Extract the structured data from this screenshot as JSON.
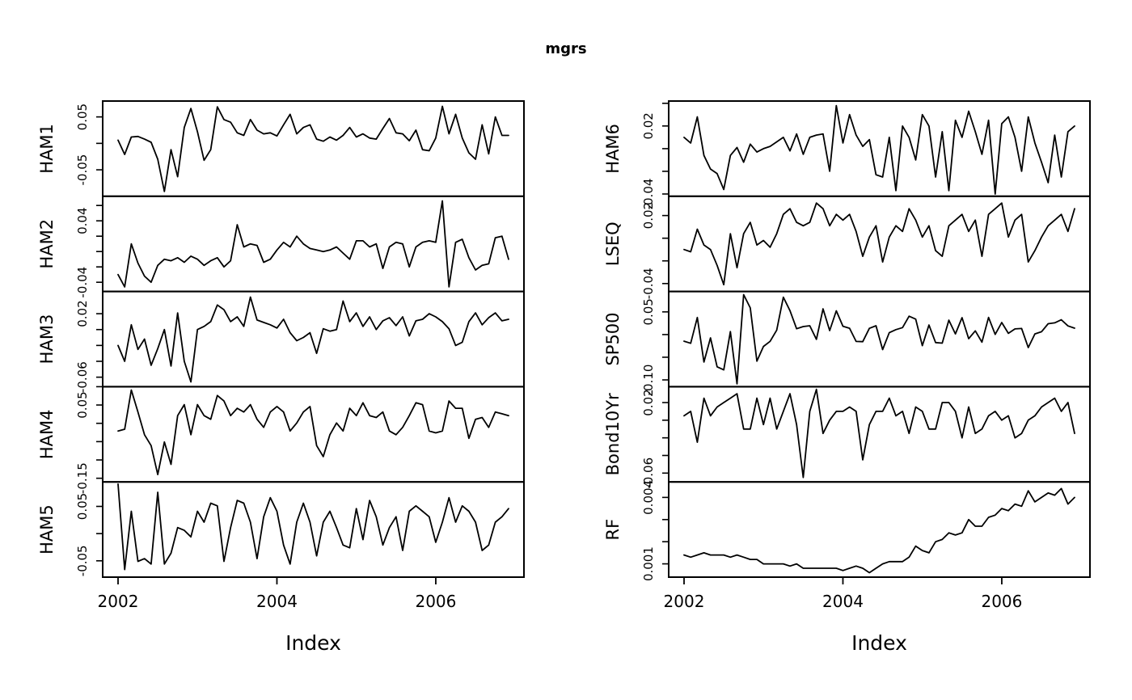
{
  "title": "mgrs",
  "colors": {
    "line": "#000000",
    "frame": "#000000",
    "background": "#ffffff",
    "text": "#000000"
  },
  "chart_data": {
    "type": "line",
    "title": "mgrs",
    "xlabel": "Index",
    "x_ticks": [
      2002,
      2004,
      2006
    ],
    "x_start": 2002.0,
    "x_frequency": "monthly",
    "n_points": 60,
    "layout": "2 columns x 5 stacked panels, shared x axis per column, y tick labels rotated 90deg",
    "panels": [
      {
        "name": "HAM1",
        "column": 0,
        "ylim": [
          -0.1,
          0.08
        ],
        "yticks": [
          0.05,
          0.0,
          -0.05
        ],
        "ytick_labels": [
          {
            "v": 0.05,
            "text": "0.05"
          },
          {
            "v": -0.05,
            "text": "-0.05"
          }
        ],
        "values": [
          0.006,
          -0.021,
          0.012,
          0.013,
          0.008,
          0.002,
          -0.03,
          -0.091,
          -0.012,
          -0.063,
          0.03,
          0.066,
          0.022,
          -0.032,
          -0.012,
          0.069,
          0.045,
          0.04,
          0.02,
          0.015,
          0.045,
          0.025,
          0.018,
          0.02,
          0.014,
          0.035,
          0.055,
          0.018,
          0.03,
          0.035,
          0.008,
          0.004,
          0.012,
          0.006,
          0.015,
          0.03,
          0.012,
          0.018,
          0.01,
          0.008,
          0.028,
          0.047,
          0.02,
          0.018,
          0.005,
          0.025,
          -0.012,
          -0.014,
          0.01,
          0.07,
          0.018,
          0.055,
          0.01,
          -0.018,
          -0.03,
          0.035,
          -0.02,
          0.05,
          0.015,
          0.015
        ]
      },
      {
        "name": "HAM2",
        "column": 0,
        "ylim": [
          -0.052,
          0.072
        ],
        "yticks": [
          0.06,
          0.04,
          0.02,
          0.0,
          -0.02,
          -0.04
        ],
        "ytick_labels": [
          {
            "v": 0.04,
            "text": "0.04"
          },
          {
            "v": -0.04,
            "text": "-0.04"
          }
        ],
        "values": [
          -0.03,
          -0.046,
          0.01,
          -0.015,
          -0.032,
          -0.04,
          -0.018,
          -0.01,
          -0.012,
          -0.008,
          -0.014,
          -0.006,
          -0.01,
          -0.018,
          -0.012,
          -0.008,
          -0.02,
          -0.012,
          0.035,
          0.006,
          0.01,
          0.008,
          -0.014,
          -0.01,
          0.002,
          0.012,
          0.006,
          0.02,
          0.01,
          0.004,
          0.002,
          0.0,
          0.002,
          0.006,
          -0.002,
          -0.01,
          0.014,
          0.014,
          0.006,
          0.01,
          -0.022,
          0.006,
          0.012,
          0.01,
          -0.02,
          0.006,
          0.012,
          0.014,
          0.012,
          0.066,
          -0.046,
          0.012,
          0.016,
          -0.008,
          -0.024,
          -0.018,
          -0.016,
          0.018,
          0.02,
          -0.01
        ]
      },
      {
        "name": "HAM3",
        "column": 0,
        "ylim": [
          -0.072,
          0.048
        ],
        "yticks": [
          0.02,
          0.0,
          -0.02,
          -0.04,
          -0.06
        ],
        "ytick_labels": [
          {
            "v": 0.02,
            "text": "0.02"
          },
          {
            "v": -0.06,
            "text": "-0.06"
          }
        ],
        "values": [
          -0.02,
          -0.04,
          0.006,
          -0.025,
          -0.012,
          -0.045,
          -0.024,
          0.0,
          -0.046,
          0.021,
          -0.04,
          -0.066,
          0.0,
          0.004,
          0.01,
          0.031,
          0.025,
          0.01,
          0.016,
          0.004,
          0.041,
          0.012,
          0.009,
          0.006,
          0.002,
          0.013,
          -0.004,
          -0.014,
          -0.01,
          -0.004,
          -0.03,
          0.001,
          -0.002,
          0.0,
          0.036,
          0.01,
          0.021,
          0.004,
          0.016,
          0.0,
          0.011,
          0.015,
          0.005,
          0.016,
          -0.008,
          0.011,
          0.013,
          0.02,
          0.016,
          0.01,
          0.001,
          -0.02,
          -0.016,
          0.01,
          0.021,
          0.006,
          0.015,
          0.021,
          0.011,
          0.013
        ]
      },
      {
        "name": "HAM4",
        "column": 0,
        "ylim": [
          -0.16,
          0.1
        ],
        "yticks": [
          0.1,
          0.05,
          0.0,
          -0.05,
          -0.1,
          -0.15
        ],
        "ytick_labels": [
          {
            "v": 0.05,
            "text": "0.05"
          },
          {
            "v": -0.15,
            "text": "-0.15"
          }
        ],
        "values": [
          -0.021,
          -0.016,
          0.091,
          0.031,
          -0.031,
          -0.061,
          -0.14,
          -0.051,
          -0.112,
          0.021,
          0.051,
          -0.031,
          0.051,
          0.021,
          0.011,
          0.076,
          0.061,
          0.021,
          0.041,
          0.031,
          0.051,
          0.011,
          -0.011,
          0.031,
          0.046,
          0.031,
          -0.021,
          0.001,
          0.031,
          0.046,
          -0.061,
          -0.091,
          -0.031,
          0.001,
          -0.021,
          0.041,
          0.021,
          0.056,
          0.021,
          0.016,
          0.031,
          -0.021,
          -0.031,
          -0.011,
          0.021,
          0.056,
          0.051,
          -0.021,
          -0.026,
          -0.021,
          0.061,
          0.041,
          0.041,
          -0.041,
          0.011,
          0.016,
          -0.011,
          0.031,
          0.026,
          0.021
        ]
      },
      {
        "name": "HAM5",
        "column": 0,
        "ylim": [
          -0.08,
          0.095
        ],
        "yticks": [
          0.05,
          0.0,
          -0.05
        ],
        "ytick_labels": [
          {
            "v": 0.05,
            "text": "0.05"
          },
          {
            "v": -0.05,
            "text": "-0.05"
          }
        ],
        "values": [
          0.091,
          -0.066,
          0.041,
          -0.051,
          -0.046,
          -0.056,
          0.076,
          -0.056,
          -0.036,
          0.011,
          0.006,
          -0.006,
          0.041,
          0.021,
          0.056,
          0.051,
          -0.051,
          0.011,
          0.061,
          0.056,
          0.021,
          -0.046,
          0.031,
          0.066,
          0.041,
          -0.021,
          -0.056,
          0.021,
          0.056,
          0.021,
          -0.041,
          0.021,
          0.041,
          0.011,
          -0.021,
          -0.026,
          0.046,
          -0.011,
          0.061,
          0.031,
          -0.021,
          0.011,
          0.031,
          -0.031,
          0.041,
          0.051,
          0.041,
          0.031,
          -0.016,
          0.021,
          0.066,
          0.021,
          0.051,
          0.041,
          0.021,
          -0.031,
          -0.021,
          0.021,
          0.031,
          0.046
        ]
      },
      {
        "name": "HAM6",
        "column": 1,
        "ylim": [
          -0.042,
          0.042
        ],
        "yticks": [
          0.04,
          0.02,
          0.0,
          -0.02,
          -0.04
        ],
        "ytick_labels": [
          {
            "v": 0.02,
            "text": "0.02"
          },
          {
            "v": -0.04,
            "text": "-0.04"
          }
        ],
        "values": [
          0.01,
          0.005,
          0.028,
          -0.006,
          -0.018,
          -0.022,
          -0.036,
          -0.006,
          0.001,
          -0.012,
          0.004,
          -0.003,
          0.0,
          0.002,
          0.006,
          0.01,
          -0.002,
          0.013,
          -0.005,
          0.01,
          0.012,
          0.013,
          -0.02,
          0.038,
          0.005,
          0.03,
          0.012,
          0.002,
          0.008,
          -0.023,
          -0.025,
          0.01,
          -0.037,
          0.02,
          0.01,
          -0.01,
          0.03,
          0.02,
          -0.025,
          0.015,
          -0.037,
          0.025,
          0.01,
          0.033,
          0.015,
          -0.005,
          0.025,
          -0.04,
          0.022,
          0.028,
          0.01,
          -0.02,
          0.028,
          0.005,
          -0.012,
          -0.03,
          0.012,
          -0.025,
          0.015,
          0.02
        ]
      },
      {
        "name": "LSEQ",
        "column": 1,
        "ylim": [
          -0.047,
          0.037
        ],
        "yticks": [
          0.02,
          0.0,
          -0.02,
          -0.04
        ],
        "ytick_labels": [
          {
            "v": 0.02,
            "text": "0.02"
          },
          {
            "v": -0.04,
            "text": "-0.04"
          }
        ],
        "values": [
          -0.01,
          -0.012,
          0.008,
          -0.006,
          -0.01,
          -0.024,
          -0.041,
          0.004,
          -0.026,
          0.004,
          0.014,
          -0.006,
          -0.002,
          -0.008,
          0.004,
          0.021,
          0.026,
          0.014,
          0.011,
          0.014,
          0.031,
          0.026,
          0.011,
          0.021,
          0.016,
          0.021,
          0.006,
          -0.016,
          0.001,
          0.011,
          -0.021,
          0.001,
          0.011,
          0.006,
          0.026,
          0.016,
          0.001,
          0.011,
          -0.011,
          -0.016,
          0.011,
          0.016,
          0.021,
          0.006,
          0.016,
          -0.016,
          0.021,
          0.026,
          0.031,
          0.001,
          0.016,
          0.021,
          -0.021,
          -0.011,
          0.001,
          0.011,
          0.016,
          0.021,
          0.006,
          0.026
        ]
      },
      {
        "name": "SP500",
        "column": 1,
        "ylim": [
          -0.115,
          0.095
        ],
        "yticks": [
          0.05,
          0.0,
          -0.05,
          -0.1
        ],
        "ytick_labels": [
          {
            "v": 0.05,
            "text": "0.05"
          },
          {
            "v": -0.1,
            "text": "-0.10"
          }
        ],
        "values": [
          -0.0146,
          -0.0193,
          0.0376,
          -0.0606,
          -0.0074,
          -0.0712,
          -0.078,
          0.0066,
          -0.1087,
          0.088,
          0.0589,
          -0.0587,
          -0.0262,
          -0.015,
          0.0097,
          0.0824,
          0.0527,
          0.0128,
          0.0176,
          0.0195,
          -0.0106,
          0.0566,
          0.0088,
          0.0524,
          0.0184,
          0.0139,
          -0.0151,
          -0.0157,
          0.0137,
          0.0194,
          -0.0331,
          0.004,
          0.0108,
          0.0153,
          0.0405,
          0.034,
          -0.0244,
          0.021,
          -0.0177,
          -0.019,
          0.0318,
          0.0014,
          0.0372,
          -0.0091,
          0.0081,
          -0.0167,
          0.0378,
          0.0003,
          0.0265,
          0.0027,
          0.0124,
          0.0134,
          -0.0288,
          0.0014,
          0.0062,
          0.0238,
          0.0258,
          0.0326,
          0.019,
          0.014
        ]
      },
      {
        "name": "Bond10Yr",
        "column": 1,
        "ylim": [
          -0.07,
          0.038
        ],
        "yticks": [
          0.02,
          0.0,
          -0.02,
          -0.04,
          -0.06
        ],
        "ytick_labels": [
          {
            "v": 0.02,
            "text": "0.02"
          },
          {
            "v": -0.06,
            "text": "-0.06"
          }
        ],
        "values": [
          0.005,
          0.01,
          -0.025,
          0.025,
          0.005,
          0.015,
          0.02,
          0.025,
          0.03,
          -0.01,
          -0.01,
          0.025,
          -0.005,
          0.025,
          -0.01,
          0.01,
          0.03,
          -0.005,
          -0.065,
          0.01,
          0.035,
          -0.015,
          0.0,
          0.01,
          0.01,
          0.015,
          0.01,
          -0.045,
          -0.005,
          0.01,
          0.01,
          0.025,
          0.005,
          0.01,
          -0.015,
          0.015,
          0.01,
          -0.01,
          -0.01,
          0.02,
          0.02,
          0.01,
          -0.02,
          0.015,
          -0.015,
          -0.01,
          0.005,
          0.01,
          0.0,
          0.005,
          -0.02,
          -0.015,
          0.0,
          0.005,
          0.015,
          0.02,
          0.025,
          0.01,
          0.02,
          -0.015
        ]
      },
      {
        "name": "RF",
        "column": 1,
        "ylim": [
          0.0004,
          0.0047
        ],
        "yticks": [
          0.004,
          0.003,
          0.002,
          0.001
        ],
        "ytick_labels": [
          {
            "v": 0.004,
            "text": "0.004"
          },
          {
            "v": 0.001,
            "text": "0.001"
          }
        ],
        "values": [
          0.0014,
          0.0013,
          0.0014,
          0.0015,
          0.0014,
          0.0014,
          0.0014,
          0.0013,
          0.0014,
          0.0013,
          0.0012,
          0.0012,
          0.001,
          0.001,
          0.001,
          0.001,
          0.0009,
          0.001,
          0.0008,
          0.0008,
          0.0008,
          0.0008,
          0.0008,
          0.0008,
          0.0007,
          0.0008,
          0.0009,
          0.0008,
          0.0006,
          0.0008,
          0.001,
          0.0011,
          0.0011,
          0.0011,
          0.0013,
          0.0018,
          0.0016,
          0.0015,
          0.002,
          0.0021,
          0.0024,
          0.0023,
          0.0024,
          0.003,
          0.0027,
          0.0027,
          0.0031,
          0.0032,
          0.0035,
          0.0034,
          0.0037,
          0.0036,
          0.0043,
          0.0038,
          0.004,
          0.0042,
          0.0041,
          0.0044,
          0.0037,
          0.004
        ]
      }
    ]
  }
}
